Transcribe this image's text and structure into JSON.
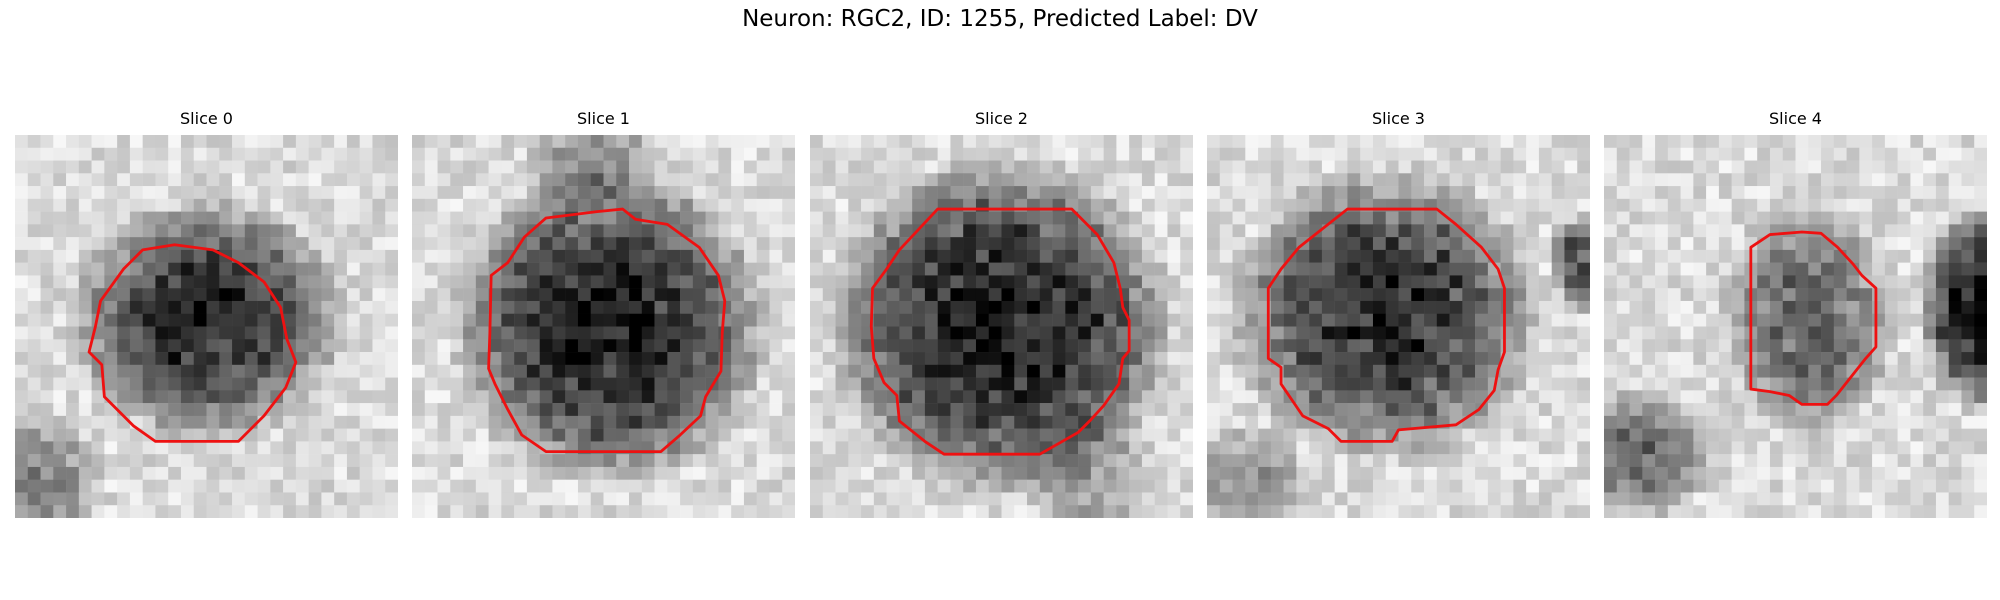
{
  "figure": {
    "title": "Neuron: RGC2, ID: 1255, Predicted Label: DV",
    "outline_color": "#ee1111",
    "panels": [
      {
        "title": "Slice 0"
      },
      {
        "title": "Slice 1"
      },
      {
        "title": "Slice 2"
      },
      {
        "title": "Slice 3"
      },
      {
        "title": "Slice 4"
      }
    ]
  }
}
